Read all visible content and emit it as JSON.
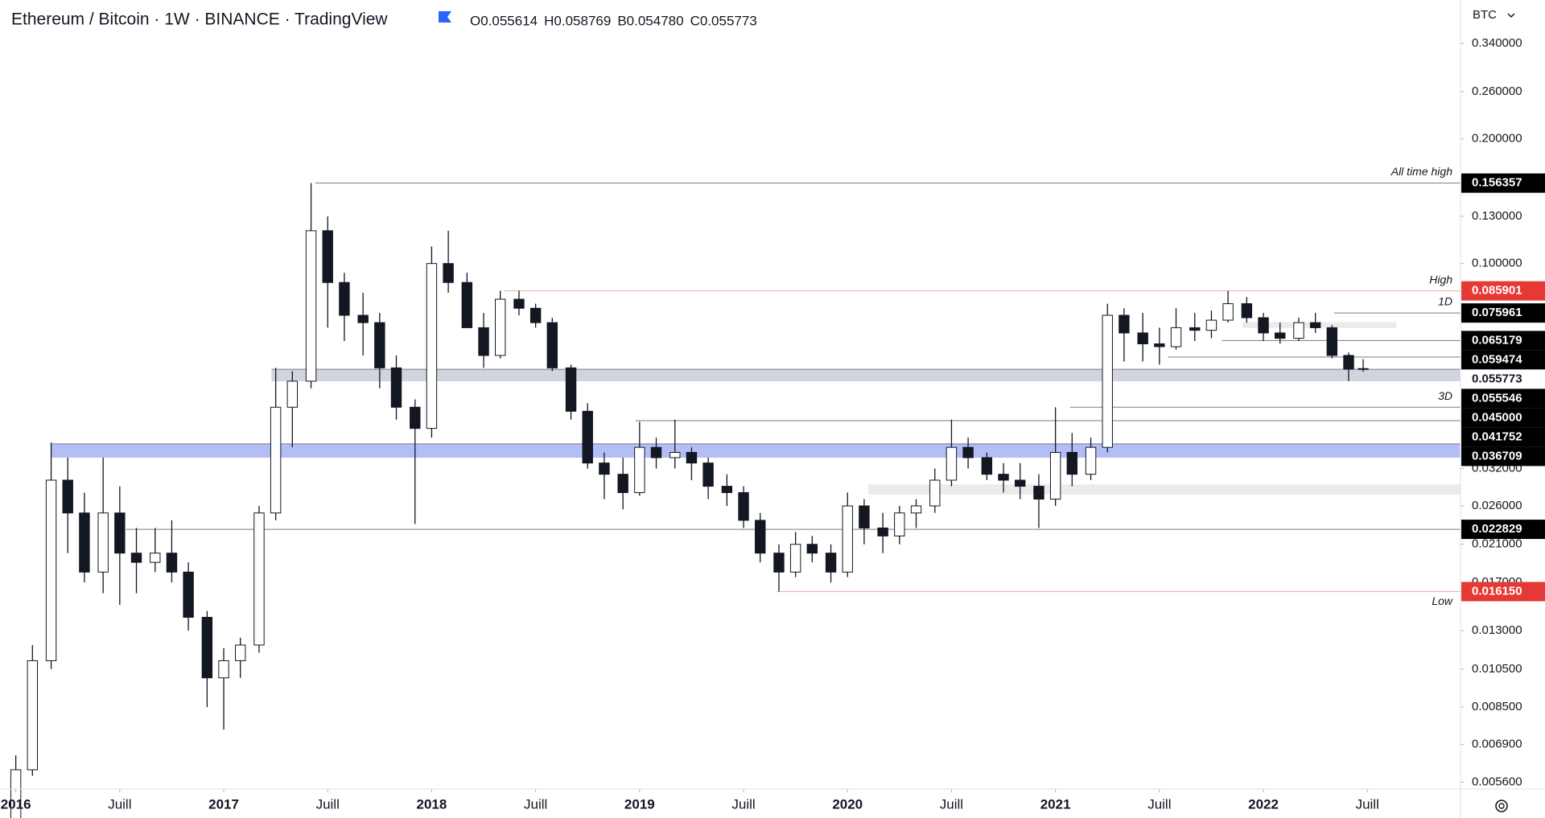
{
  "chart_data": {
    "type": "candlestick",
    "title": "Ethereum / Bitcoin · 1W · BINANCE · TradingView",
    "ohlc_legend": [
      "O0.055614",
      "H0.058769",
      "B0.054780",
      "C0.055773"
    ],
    "currency": "BTC",
    "log_scale": true,
    "xlim": [
      2015.924,
      2022.948
    ],
    "ylim": [
      0.00539,
      0.4326
    ],
    "xticks": [
      2016,
      {
        "value": 2016.5,
        "label": "Juill"
      },
      2017,
      {
        "value": 2017.5,
        "label": "Juill"
      },
      2018,
      {
        "value": 2018.5,
        "label": "Juill"
      },
      2019,
      {
        "value": 2019.5,
        "label": "Juill"
      },
      2020,
      {
        "value": 2020.5,
        "label": "Juill"
      },
      2021,
      {
        "value": 2021.5,
        "label": "Juill"
      },
      2022,
      {
        "value": 2022.5,
        "label": "Juill"
      }
    ],
    "yticks": [
      {
        "value": 0.34,
        "label": "0.340000"
      },
      {
        "value": 0.26,
        "label": "0.260000"
      },
      {
        "value": 0.2,
        "label": "0.200000"
      },
      {
        "value": 0.13,
        "label": "0.130000"
      },
      {
        "value": 0.1,
        "label": "0.100000"
      },
      {
        "value": 0.032,
        "label": "0.032000"
      },
      {
        "value": 0.026,
        "label": "0.026000"
      },
      {
        "value": 0.021,
        "label": "0.021000"
      },
      {
        "value": 0.017,
        "label": "0.017000"
      },
      {
        "value": 0.013,
        "label": "0.013000"
      },
      {
        "value": 0.0105,
        "label": "0.010500"
      },
      {
        "value": 0.0085,
        "label": "0.008500"
      },
      {
        "value": 0.0069,
        "label": "0.006900"
      },
      {
        "value": 0.0056,
        "label": "0.005600"
      }
    ],
    "up_color": "#ffffff",
    "down_color": "#131722",
    "wick_color": "#131722",
    "x": [
      2016.0,
      2016.08,
      2016.17,
      2016.25,
      2016.33,
      2016.42,
      2016.5,
      2016.58,
      2016.67,
      2016.75,
      2016.83,
      2016.92,
      2017.0,
      2017.08,
      2017.17,
      2017.25,
      2017.33,
      2017.42,
      2017.5,
      2017.58,
      2017.67,
      2017.75,
      2017.83,
      2017.92,
      2018.0,
      2018.08,
      2018.17,
      2018.25,
      2018.33,
      2018.42,
      2018.5,
      2018.58,
      2018.67,
      2018.75,
      2018.83,
      2018.92,
      2019.0,
      2019.08,
      2019.17,
      2019.25,
      2019.33,
      2019.42,
      2019.5,
      2019.58,
      2019.67,
      2019.75,
      2019.83,
      2019.92,
      2020.0,
      2020.08,
      2020.17,
      2020.25,
      2020.33,
      2020.42,
      2020.5,
      2020.58,
      2020.67,
      2020.75,
      2020.83,
      2020.92,
      2021.0,
      2021.08,
      2021.17,
      2021.25,
      2021.33,
      2021.42,
      2021.5,
      2021.58,
      2021.67,
      2021.75,
      2021.83,
      2021.92,
      2022.0,
      2022.08,
      2022.17,
      2022.25,
      2022.33,
      2022.41,
      2022.48
    ],
    "open": [
      0.0045,
      0.006,
      0.011,
      0.03,
      0.025,
      0.018,
      0.025,
      0.02,
      0.019,
      0.02,
      0.018,
      0.014,
      0.01,
      0.011,
      0.012,
      0.025,
      0.045,
      0.052,
      0.12,
      0.09,
      0.075,
      0.072,
      0.056,
      0.045,
      0.04,
      0.1,
      0.09,
      0.07,
      0.06,
      0.082,
      0.078,
      0.072,
      0.056,
      0.044,
      0.033,
      0.031,
      0.028,
      0.036,
      0.034,
      0.035,
      0.033,
      0.029,
      0.028,
      0.024,
      0.02,
      0.018,
      0.021,
      0.02,
      0.018,
      0.026,
      0.023,
      0.022,
      0.025,
      0.026,
      0.03,
      0.036,
      0.034,
      0.031,
      0.03,
      0.029,
      0.027,
      0.035,
      0.031,
      0.036,
      0.075,
      0.068,
      0.064,
      0.063,
      0.07,
      0.069,
      0.073,
      0.08,
      0.074,
      0.068,
      0.066,
      0.072,
      0.07,
      0.06,
      0.055614
    ],
    "high": [
      0.0065,
      0.012,
      0.037,
      0.034,
      0.028,
      0.034,
      0.029,
      0.023,
      0.023,
      0.024,
      0.019,
      0.0145,
      0.0118,
      0.0125,
      0.026,
      0.056,
      0.055,
      0.156357,
      0.13,
      0.095,
      0.085,
      0.076,
      0.06,
      0.047,
      0.11,
      0.12,
      0.095,
      0.076,
      0.086,
      0.086,
      0.08,
      0.074,
      0.057,
      0.046,
      0.035,
      0.034,
      0.0415,
      0.038,
      0.042,
      0.036,
      0.034,
      0.031,
      0.029,
      0.025,
      0.021,
      0.0225,
      0.022,
      0.021,
      0.028,
      0.027,
      0.025,
      0.026,
      0.027,
      0.032,
      0.042,
      0.038,
      0.035,
      0.033,
      0.033,
      0.031,
      0.045,
      0.039,
      0.038,
      0.08,
      0.078,
      0.076,
      0.07,
      0.078,
      0.076,
      0.077,
      0.085901,
      0.083,
      0.076,
      0.072,
      0.074,
      0.076,
      0.071,
      0.061,
      0.058769
    ],
    "low": [
      0.004,
      0.0058,
      0.0105,
      0.02,
      0.017,
      0.016,
      0.015,
      0.016,
      0.018,
      0.017,
      0.013,
      0.0085,
      0.0075,
      0.01,
      0.0115,
      0.024,
      0.036,
      0.05,
      0.07,
      0.065,
      0.06,
      0.05,
      0.042,
      0.0235,
      0.038,
      0.085,
      0.07,
      0.056,
      0.059,
      0.075,
      0.07,
      0.055,
      0.042,
      0.032,
      0.027,
      0.0255,
      0.0275,
      0.032,
      0.032,
      0.03,
      0.027,
      0.026,
      0.023,
      0.019,
      0.01615,
      0.0175,
      0.019,
      0.017,
      0.0175,
      0.021,
      0.02,
      0.021,
      0.023,
      0.025,
      0.029,
      0.032,
      0.03,
      0.028,
      0.027,
      0.023,
      0.026,
      0.029,
      0.03,
      0.035,
      0.058,
      0.058,
      0.057,
      0.062,
      0.065,
      0.066,
      0.072,
      0.072,
      0.065,
      0.064,
      0.065,
      0.068,
      0.059,
      0.052,
      0.05478
    ],
    "close": [
      0.006,
      0.011,
      0.03,
      0.025,
      0.018,
      0.025,
      0.02,
      0.019,
      0.02,
      0.018,
      0.014,
      0.01,
      0.011,
      0.012,
      0.025,
      0.045,
      0.052,
      0.12,
      0.09,
      0.075,
      0.072,
      0.056,
      0.045,
      0.04,
      0.1,
      0.09,
      0.07,
      0.06,
      0.082,
      0.078,
      0.072,
      0.056,
      0.044,
      0.033,
      0.031,
      0.028,
      0.036,
      0.034,
      0.035,
      0.033,
      0.029,
      0.028,
      0.024,
      0.02,
      0.018,
      0.021,
      0.02,
      0.018,
      0.026,
      0.023,
      0.022,
      0.025,
      0.026,
      0.03,
      0.036,
      0.034,
      0.031,
      0.03,
      0.029,
      0.027,
      0.035,
      0.031,
      0.036,
      0.075,
      0.068,
      0.064,
      0.063,
      0.07,
      0.069,
      0.073,
      0.08,
      0.074,
      0.068,
      0.066,
      0.072,
      0.07,
      0.06,
      0.0556,
      0.055773
    ],
    "zones": [
      {
        "low": 0.052,
        "high": 0.0555,
        "start": 2017.23,
        "color": "#d1d4dc"
      },
      {
        "low": 0.034,
        "high": 0.0367,
        "start": 2016.17,
        "color": "#b3bef7"
      },
      {
        "low": 0.0277,
        "high": 0.0293,
        "start": 2020.1,
        "color": "#ebebeb"
      },
      {
        "low": 0.0699,
        "high": 0.0722,
        "start": 2021.9,
        "end": 2022.64,
        "color": "#ebebeb"
      }
    ],
    "levels": [
      {
        "value": 0.156357,
        "label": "0.156357",
        "start": 2017.44,
        "line_color": "#787b86",
        "box_color": "#000000"
      },
      {
        "value": 0.085901,
        "label": "0.085901",
        "start": 2018.35,
        "line_color": "#e8a9a9",
        "box_color": "#e53935"
      },
      {
        "value": 0.075961,
        "label": "0.075961",
        "start": 2022.34,
        "line_color": "#787b86",
        "box_color": "#000000"
      },
      {
        "value": 0.065179,
        "label": "0.065179",
        "start": 2021.8,
        "line_color": "#787b86",
        "box_color": "#000000"
      },
      {
        "value": 0.059474,
        "label": "0.059474",
        "start": 2021.54,
        "line_color": "#787b86",
        "box_color": "#000000"
      },
      {
        "value": 0.055546,
        "label": "0.055546",
        "start": 2017.23,
        "line_color": "#787b86",
        "box_color": "#000000"
      },
      {
        "value": 0.045,
        "label": "0.045000",
        "start": 2021.07,
        "line_color": "#787b86",
        "box_color": "#000000"
      },
      {
        "value": 0.041752,
        "label": "0.041752",
        "start": 2018.98,
        "line_color": "#787b86",
        "box_color": "#000000"
      },
      {
        "value": 0.036709,
        "label": "0.036709",
        "start": 2016.17,
        "line_color": "#787b86",
        "box_color": "#000000"
      },
      {
        "value": 0.022829,
        "label": "0.022829",
        "start": 2016.53,
        "line_color": "#787b86",
        "box_color": "#000000"
      },
      {
        "value": 0.01615,
        "label": "0.016150",
        "start": 2019.66,
        "line_color": "#e8a9a9",
        "box_color": "#e53935"
      }
    ],
    "last_price": 0.055773,
    "annotations": [
      {
        "text": "All time high",
        "y": 0.166
      },
      {
        "text": "High",
        "y": 0.0909
      },
      {
        "text": "1D",
        "y": 0.0806
      },
      {
        "text": "3D",
        "y": 0.0477
      },
      {
        "text": "Low",
        "y": 0.01527
      }
    ]
  }
}
